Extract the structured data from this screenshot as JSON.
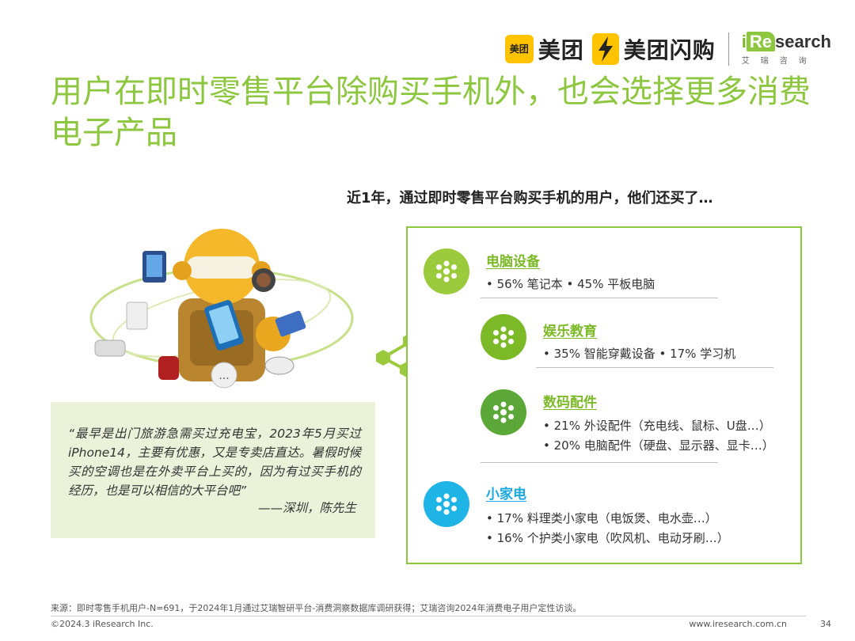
{
  "header": {
    "meituan_badge": "美团",
    "meituan_name": "美团",
    "shangou_name": "美团闪购",
    "iresearch_i": "i",
    "iresearch_re": "Re",
    "iresearch_search": "search",
    "iresearch_sub": "艾瑞咨询"
  },
  "title": "用户在即时零售平台除购买手机外，也会选择更多消费电子产品",
  "subtitle": "近1年，通过即时零售平台购买手机的用户，他们还买了…",
  "illustration": {
    "more_label": "..."
  },
  "quote": {
    "text": "“最早是出门旅游急需买过充电宝，2023年5月买过iPhone14，主要有优惠，又是专卖店直达。暑假时候买的空调也是在外卖平台上买的，因为有过买手机的经历，也是可以相信的大平台吧”",
    "attribution": "——深圳，陈先生"
  },
  "categories": [
    {
      "title": "电脑设备",
      "lines": [
        "• 56% 笔记本     • 45% 平板电脑"
      ]
    },
    {
      "title": "娱乐教育",
      "lines": [
        "• 35% 智能穿戴设备  • 17% 学习机"
      ]
    },
    {
      "title": "数码配件",
      "lines": [
        "• 21% 外设配件（充电线、鼠标、U盘…）",
        "• 20% 电脑配件（硬盘、显示器、显卡…）"
      ]
    },
    {
      "title": "小家电",
      "lines": [
        "• 17% 料理类小家电（电饭煲、电水壶…）",
        "• 16% 个护类小家电（吹风机、电动牙刷…）"
      ]
    }
  ],
  "colors": {
    "brand_green": "#8DC63F",
    "icon_green_light": "#9BCB3C",
    "icon_green_mid": "#7BB927",
    "icon_green_dark": "#5BA838",
    "icon_blue": "#1FB4E6",
    "quote_bg": "#EAF3DA"
  },
  "footer": {
    "source": "来源：即时零售手机用户-N=691，于2024年1月通过艾瑞智研平台-消费洞察数据库调研获得；艾瑞咨询2024年消费电子用户定性访谈。",
    "copyright": "©2024.3 iResearch Inc.",
    "website": "www.iresearch.com.cn",
    "page": "34"
  }
}
